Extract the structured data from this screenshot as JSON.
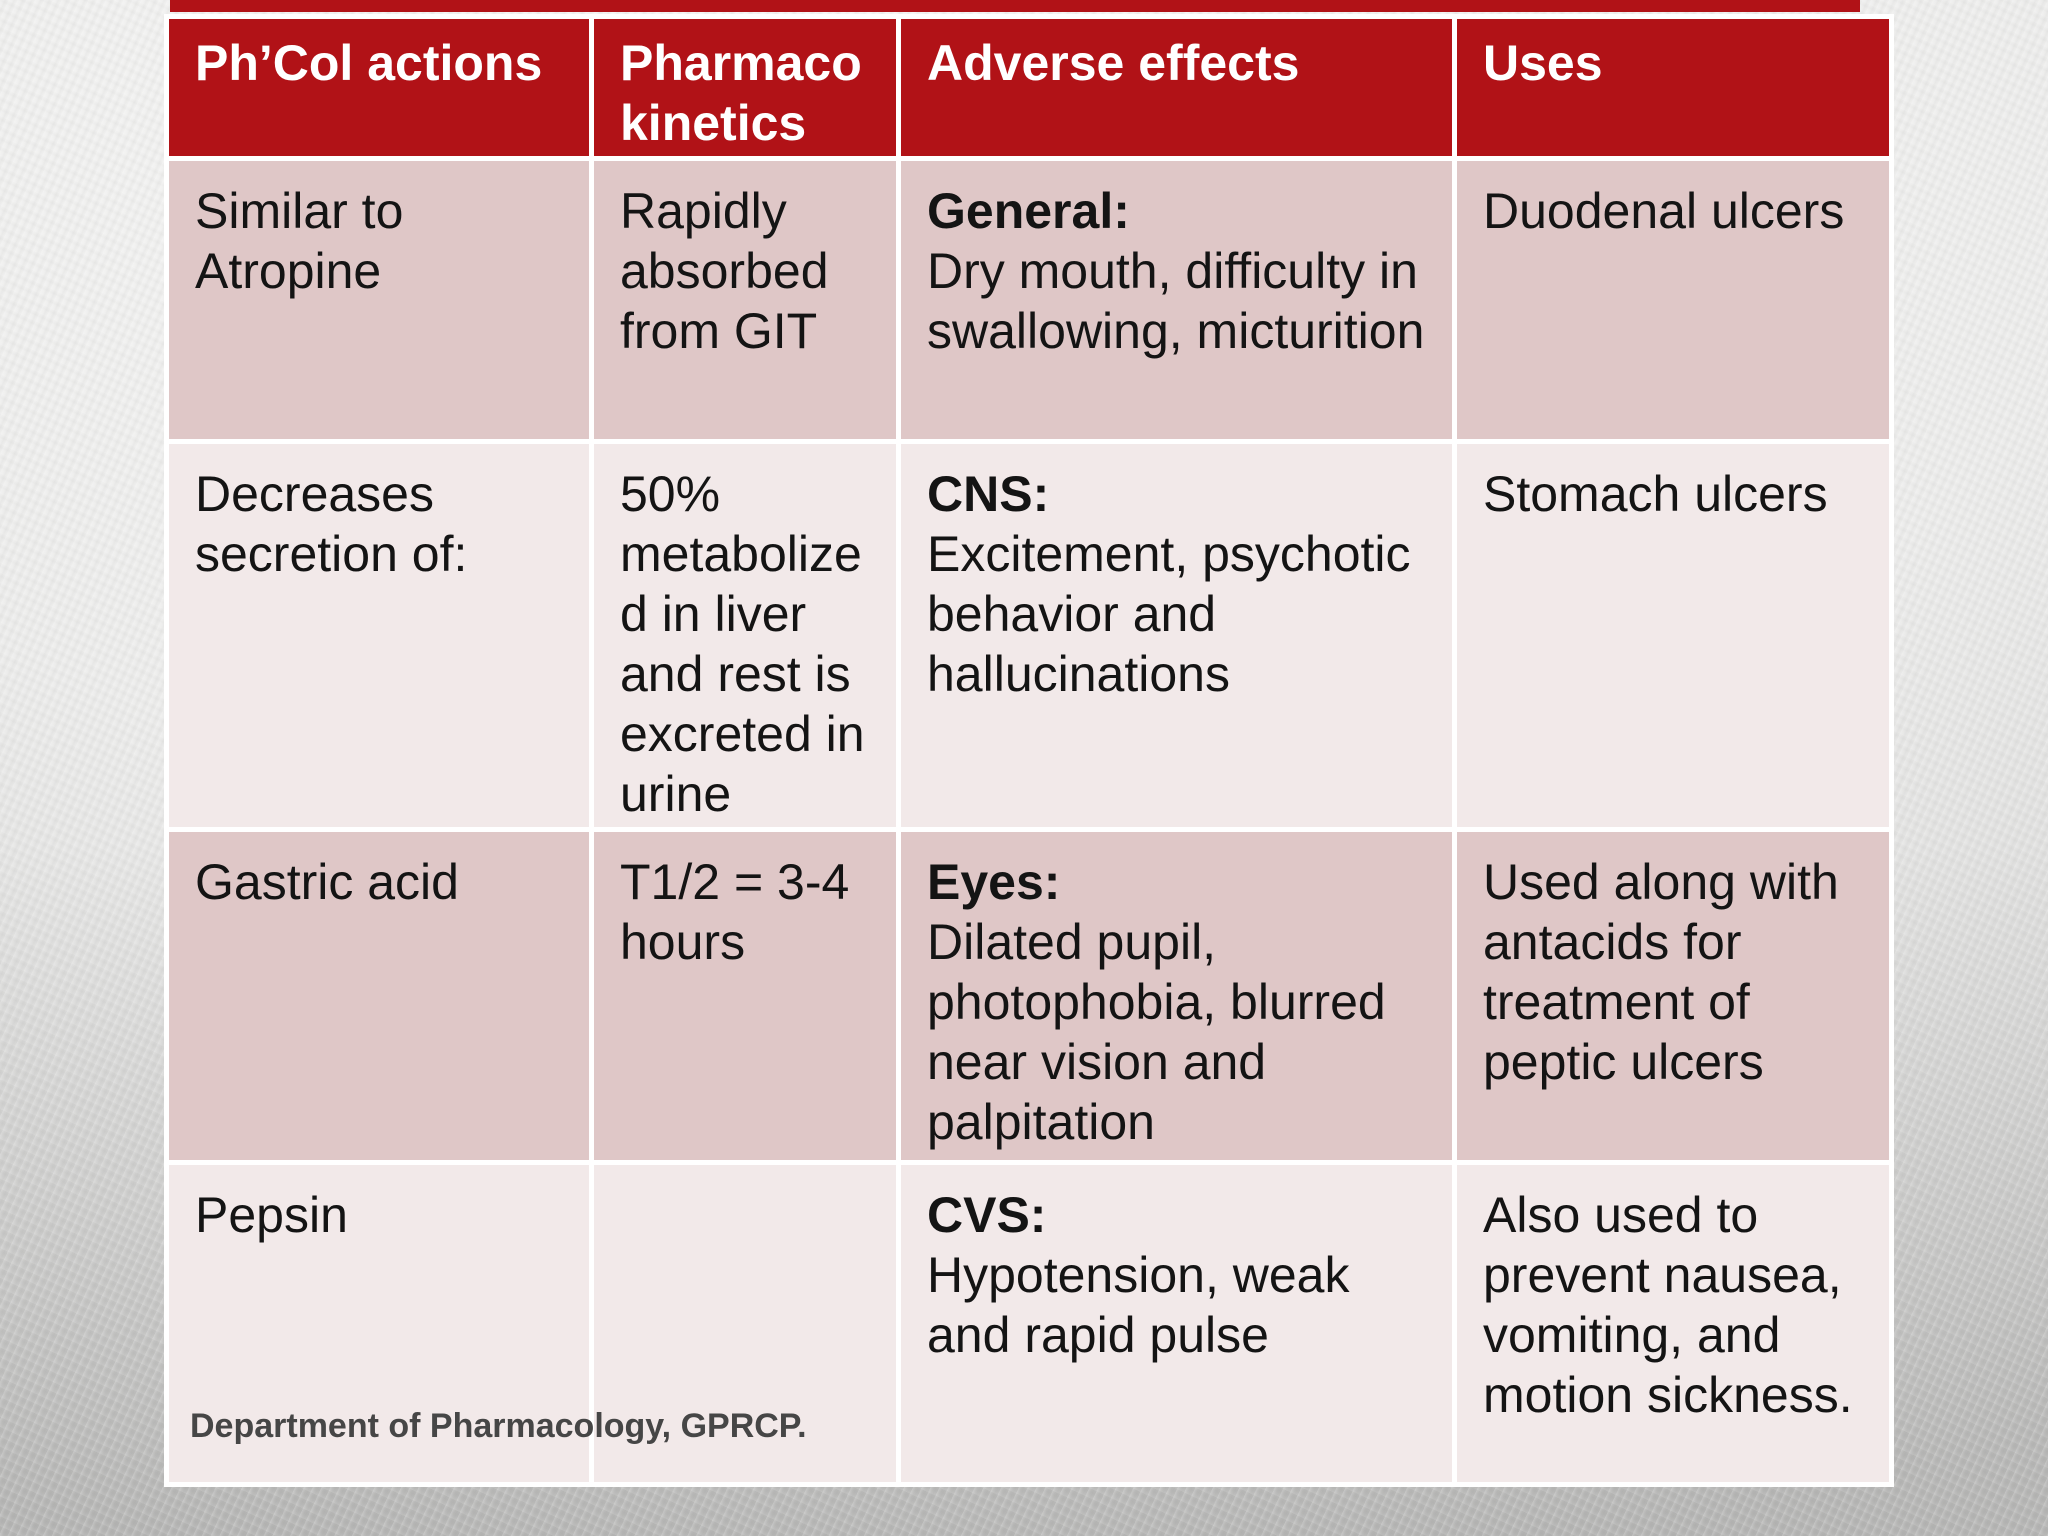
{
  "slide": {
    "footer": "Department of Pharmacology, GPRCP."
  },
  "colors": {
    "header_bg": "#b11217",
    "header_text": "#ffffff",
    "row_dark": "#dfc7c7",
    "row_light": "#f2e9e9",
    "cell_text": "#141414",
    "footer_text": "#464646",
    "table_border": "#ffffff"
  },
  "table": {
    "headers": [
      {
        "label": "Ph’Col actions"
      },
      {
        "label": "Pharmaco kinetics"
      },
      {
        "label": "Adverse effects"
      },
      {
        "label": "Uses"
      }
    ],
    "rows": [
      {
        "actions": "Similar to Atropine",
        "pharmacokinetics": "Rapidly absorbed from GIT",
        "adverse_label": "General:",
        "adverse_text": "Dry mouth, difficulty in swallowing, micturition",
        "uses": "Duodenal ulcers"
      },
      {
        "actions": "Decreases secretion of:",
        "pharmacokinetics": "50% metabolized in liver and rest is excreted in urine",
        "adverse_label": "CNS:",
        "adverse_text": "Excitement, psychotic behavior and hallucinations",
        "uses": "Stomach ulcers"
      },
      {
        "actions": "Gastric acid",
        "pharmacokinetics": "T1/2 = 3-4 hours",
        "adverse_label": "Eyes:",
        "adverse_text": "Dilated pupil, photophobia, blurred near vision and palpitation",
        "uses": "Used along with antacids for treatment of peptic ulcers"
      },
      {
        "actions": "Pepsin",
        "pharmacokinetics": "",
        "adverse_label": "CVS:",
        "adverse_text": "Hypotension, weak and rapid pulse",
        "uses": "Also used to prevent nausea, vomiting, and motion sickness."
      }
    ]
  }
}
